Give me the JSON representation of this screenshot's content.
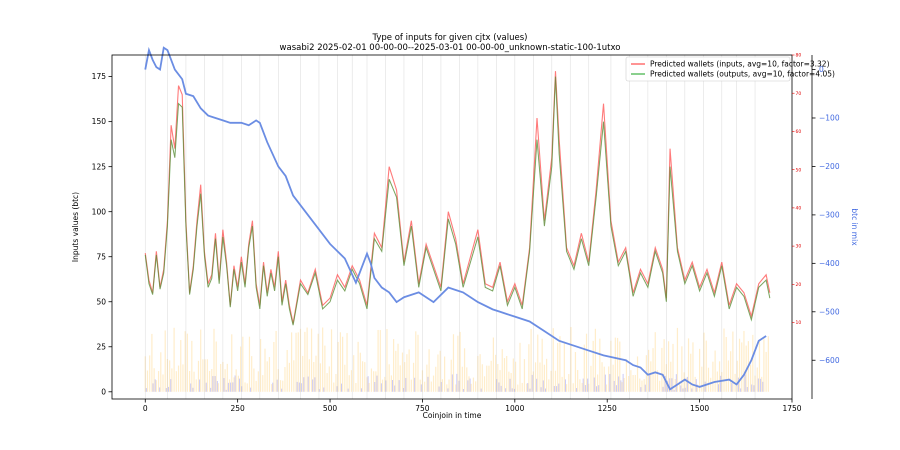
{
  "chart_data": {
    "type": "line",
    "title": "Type of inputs for given cjtx (values)",
    "subtitle": "wasabi2 2025-02-01 00-00-00--2025-03-01 00-00-00_unknown-static-100-1utxo",
    "xlabel": "Coinjoin in time",
    "ylabel": "Inputs values (btc)",
    "y2label": "btc in mix",
    "xlim": [
      -90,
      1750
    ],
    "ylim": [
      -4,
      187
    ],
    "y2lim": [
      -680,
      30
    ],
    "y3lim": [
      -10,
      80
    ],
    "x_ticks": [
      0,
      250,
      500,
      750,
      1000,
      1250,
      1500,
      1750
    ],
    "y_ticks": [
      0,
      25,
      50,
      75,
      100,
      125,
      150,
      175
    ],
    "y2_ticks": [
      0,
      -100,
      -200,
      -300,
      -400,
      -500,
      -600
    ],
    "y3_ticks": [
      10,
      20,
      30,
      40,
      50,
      60,
      70,
      80
    ],
    "legend_position": "top-right",
    "colors": {
      "inputs": "#ff4d4d",
      "outputs": "#3cb043",
      "overlap": "#7a6b2e",
      "btc_in_mix": "#6b8de3",
      "red_axis": "#e00000",
      "blue_axis": "#4169e1",
      "background_bars": "#ffcc66",
      "background_bars_2": "#8888ee"
    },
    "series": [
      {
        "name": "Predicted wallets (inputs, avg=10, factor=3.32)",
        "axis": "left",
        "x": [
          0,
          10,
          20,
          30,
          40,
          50,
          60,
          70,
          80,
          90,
          100,
          110,
          120,
          130,
          140,
          150,
          160,
          170,
          180,
          190,
          200,
          210,
          220,
          230,
          240,
          250,
          260,
          270,
          280,
          290,
          300,
          310,
          320,
          330,
          340,
          350,
          360,
          370,
          380,
          390,
          400,
          420,
          440,
          460,
          480,
          500,
          520,
          540,
          560,
          580,
          600,
          620,
          640,
          660,
          680,
          700,
          720,
          740,
          760,
          780,
          800,
          820,
          840,
          860,
          880,
          900,
          920,
          940,
          960,
          980,
          1000,
          1020,
          1040,
          1060,
          1080,
          1100,
          1110,
          1120,
          1140,
          1160,
          1180,
          1200,
          1220,
          1240,
          1260,
          1280,
          1300,
          1320,
          1340,
          1360,
          1380,
          1400,
          1410,
          1420,
          1440,
          1460,
          1480,
          1500,
          1520,
          1540,
          1560,
          1580,
          1600,
          1620,
          1640,
          1660,
          1680,
          1690
        ],
        "values": [
          77,
          62,
          55,
          78,
          58,
          68,
          95,
          148,
          135,
          170,
          165,
          95,
          55,
          70,
          95,
          115,
          78,
          60,
          65,
          88,
          62,
          90,
          72,
          48,
          70,
          58,
          75,
          60,
          82,
          95,
          60,
          48,
          72,
          55,
          68,
          58,
          78,
          50,
          62,
          48,
          38,
          62,
          55,
          68,
          48,
          52,
          65,
          58,
          70,
          62,
          48,
          88,
          80,
          125,
          112,
          72,
          95,
          60,
          82,
          70,
          58,
          100,
          85,
          60,
          75,
          90,
          60,
          58,
          72,
          50,
          60,
          48,
          80,
          152,
          95,
          130,
          178,
          140,
          80,
          70,
          88,
          72,
          112,
          160,
          95,
          72,
          80,
          55,
          68,
          60,
          80,
          68,
          52,
          135,
          80,
          62,
          72,
          58,
          68,
          55,
          72,
          48,
          60,
          55,
          42,
          60,
          65,
          55
        ]
      },
      {
        "name": "Predicted wallets (outputs, avg=10, factor=4.05)",
        "axis": "left",
        "x": [
          0,
          10,
          20,
          30,
          40,
          50,
          60,
          70,
          80,
          90,
          100,
          110,
          120,
          130,
          140,
          150,
          160,
          170,
          180,
          190,
          200,
          210,
          220,
          230,
          240,
          250,
          260,
          270,
          280,
          290,
          300,
          310,
          320,
          330,
          340,
          350,
          360,
          370,
          380,
          390,
          400,
          420,
          440,
          460,
          480,
          500,
          520,
          540,
          560,
          580,
          600,
          620,
          640,
          660,
          680,
          700,
          720,
          740,
          760,
          780,
          800,
          820,
          840,
          860,
          880,
          900,
          920,
          940,
          960,
          980,
          1000,
          1020,
          1040,
          1060,
          1080,
          1100,
          1110,
          1120,
          1140,
          1160,
          1180,
          1200,
          1220,
          1240,
          1260,
          1280,
          1300,
          1320,
          1340,
          1360,
          1380,
          1400,
          1410,
          1420,
          1440,
          1460,
          1480,
          1500,
          1520,
          1540,
          1560,
          1580,
          1600,
          1620,
          1640,
          1660,
          1680,
          1690
        ],
        "values": [
          76,
          60,
          54,
          76,
          57,
          66,
          92,
          140,
          130,
          160,
          158,
          92,
          54,
          68,
          92,
          110,
          76,
          58,
          63,
          85,
          60,
          86,
          70,
          47,
          68,
          56,
          72,
          58,
          80,
          92,
          58,
          46,
          70,
          53,
          66,
          56,
          75,
          48,
          60,
          46,
          37,
          60,
          54,
          66,
          46,
          50,
          62,
          56,
          68,
          60,
          46,
          85,
          78,
          118,
          108,
          70,
          92,
          58,
          80,
          68,
          56,
          96,
          82,
          58,
          72,
          86,
          58,
          56,
          70,
          48,
          58,
          46,
          78,
          140,
          92,
          125,
          175,
          132,
          78,
          68,
          85,
          70,
          108,
          150,
          92,
          70,
          78,
          53,
          66,
          58,
          78,
          66,
          50,
          125,
          78,
          60,
          70,
          56,
          66,
          53,
          70,
          46,
          58,
          53,
          40,
          58,
          62,
          52
        ]
      },
      {
        "name": "btc in mix",
        "axis": "right",
        "x": [
          0,
          10,
          20,
          30,
          40,
          50,
          60,
          70,
          80,
          100,
          110,
          130,
          150,
          170,
          190,
          210,
          230,
          260,
          280,
          300,
          310,
          330,
          360,
          380,
          400,
          430,
          460,
          500,
          540,
          570,
          600,
          610,
          620,
          640,
          660,
          680,
          700,
          740,
          780,
          820,
          840,
          860,
          880,
          900,
          940,
          960,
          980,
          1000,
          1040,
          1080,
          1120,
          1160,
          1200,
          1240,
          1300,
          1320,
          1340,
          1360,
          1380,
          1400,
          1420,
          1440,
          1460,
          1480,
          1500,
          1540,
          1580,
          1600,
          1620,
          1640,
          1660,
          1680
        ],
        "values": [
          0,
          40,
          20,
          5,
          0,
          45,
          40,
          20,
          0,
          -20,
          -50,
          -55,
          -80,
          -95,
          -100,
          -105,
          -110,
          -110,
          -115,
          -105,
          -110,
          -150,
          -200,
          -220,
          -260,
          -290,
          -320,
          -360,
          -390,
          -440,
          -380,
          -400,
          -430,
          -450,
          -460,
          -480,
          -470,
          -460,
          -480,
          -450,
          -455,
          -460,
          -470,
          -480,
          -495,
          -500,
          -505,
          -510,
          -520,
          -540,
          -560,
          -570,
          -580,
          -590,
          -600,
          -610,
          -615,
          -630,
          -625,
          -630,
          -660,
          -650,
          -640,
          -650,
          -655,
          -645,
          -640,
          -650,
          -630,
          -600,
          -560,
          -550
        ]
      }
    ],
    "vertical_lines_x": [
      0,
      60,
      110,
      160,
      210,
      260,
      310,
      360,
      420,
      470,
      520,
      560,
      600,
      650,
      700,
      750,
      800,
      850,
      900,
      950,
      1000,
      1050,
      1100,
      1150,
      1200,
      1260,
      1310,
      1360,
      1410,
      1460,
      1510,
      1560,
      1600,
      1650
    ]
  }
}
